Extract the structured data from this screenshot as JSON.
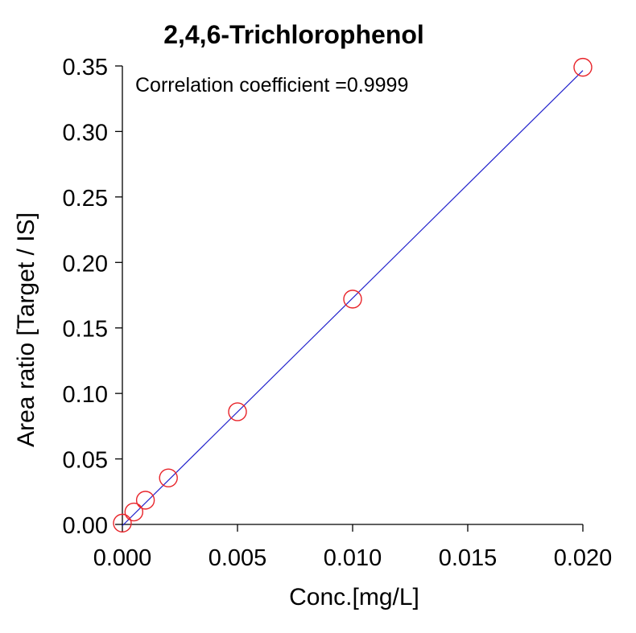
{
  "chart_data": {
    "type": "scatter",
    "title": "2,4,6-Trichlorophenol",
    "xlabel": "Conc.[mg/L]",
    "ylabel": "Area ratio [Target / IS]",
    "annotation": "Correlation coefficient =0.9999",
    "xlim": [
      0,
      0.02
    ],
    "ylim": [
      0,
      0.35
    ],
    "x_ticks": [
      "0.000",
      "0.005",
      "0.010",
      "0.015",
      "0.020"
    ],
    "y_ticks": [
      "0.00",
      "0.05",
      "0.10",
      "0.15",
      "0.20",
      "0.25",
      "0.30",
      "0.35"
    ],
    "series": [
      {
        "name": "calibration points",
        "marker": "open-circle",
        "color": "#e8242a",
        "x": [
          0.0,
          0.0005,
          0.001,
          0.002,
          0.005,
          0.01,
          0.02
        ],
        "y": [
          0.001,
          0.0095,
          0.0185,
          0.0355,
          0.086,
          0.172,
          0.349
        ]
      }
    ],
    "fit_line": {
      "name": "linear fit",
      "color": "#2222cc",
      "x": [
        0.0,
        0.02
      ],
      "y": [
        -0.001,
        0.3465
      ]
    },
    "grid": false
  }
}
